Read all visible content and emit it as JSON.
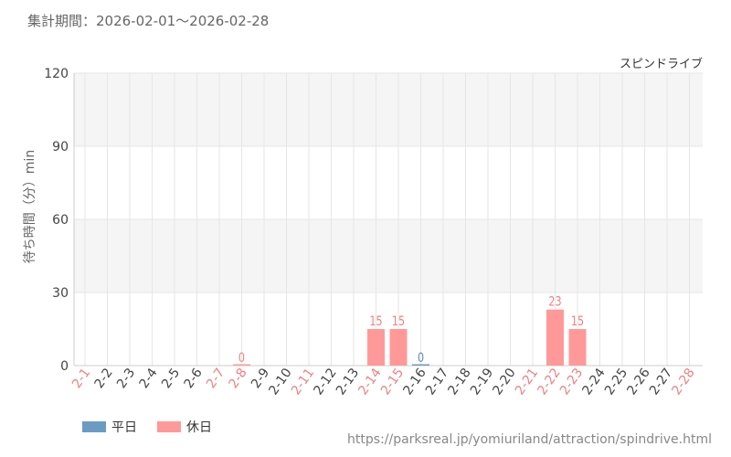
{
  "header": {
    "period": "集計期間：2026-02-01～2026-02-28"
  },
  "footer": {
    "source": "https://parksreal.jp/yomiuriland/attraction/spindrive.html"
  },
  "legend": [
    {
      "label": "平日",
      "color": "#6b9bc3"
    },
    {
      "label": "休日",
      "color": "#ff9999"
    }
  ],
  "colors": {
    "weekday": "#6b9bc3",
    "holiday": "#ff9999",
    "holiday_text": "#f08080",
    "weekday_text": "#5b8ab8",
    "axis_text": "#444444"
  },
  "chart_data": {
    "type": "bar",
    "title": "スピンドライブ",
    "xlabel": "",
    "ylabel": "待ち時間（分）min",
    "ylim": [
      0,
      120
    ],
    "yticks": [
      0,
      30,
      60,
      90,
      120
    ],
    "grid": true,
    "legend_position": "bottom-left",
    "categories": [
      "2-1",
      "2-2",
      "2-3",
      "2-4",
      "2-5",
      "2-6",
      "2-7",
      "2-8",
      "2-9",
      "2-10",
      "2-11",
      "2-12",
      "2-13",
      "2-14",
      "2-15",
      "2-16",
      "2-17",
      "2-18",
      "2-19",
      "2-20",
      "2-21",
      "2-22",
      "2-23",
      "2-24",
      "2-25",
      "2-26",
      "2-27",
      "2-28"
    ],
    "holiday": [
      true,
      false,
      false,
      false,
      false,
      false,
      true,
      true,
      false,
      false,
      true,
      false,
      false,
      true,
      true,
      false,
      false,
      false,
      false,
      false,
      true,
      true,
      true,
      false,
      false,
      false,
      false,
      true
    ],
    "values": [
      null,
      null,
      null,
      null,
      null,
      null,
      null,
      0,
      null,
      null,
      null,
      null,
      null,
      15,
      15,
      0,
      null,
      null,
      null,
      null,
      null,
      23,
      15,
      null,
      null,
      null,
      null,
      null
    ]
  }
}
